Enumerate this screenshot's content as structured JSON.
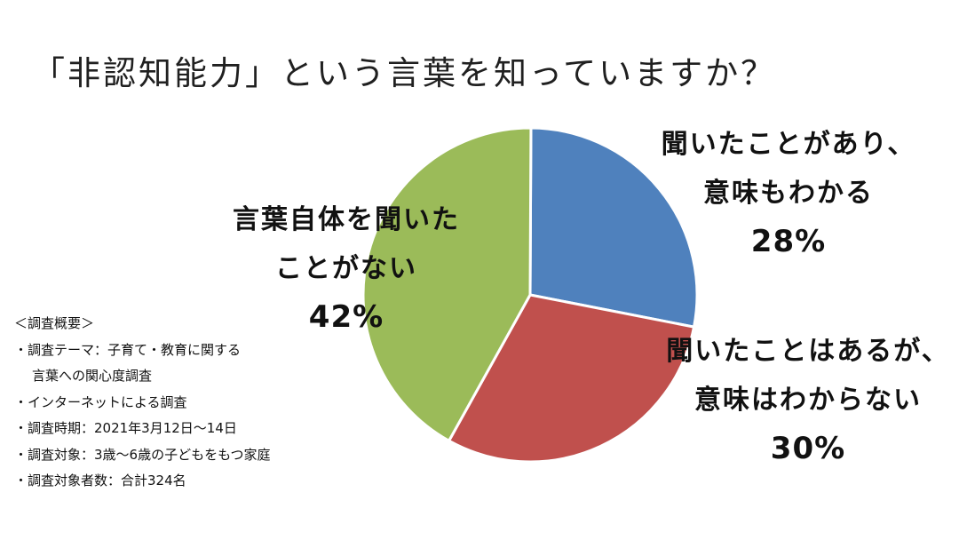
{
  "title": "「非認知能力」という言葉を知っていますか？",
  "chart_data": {
    "type": "pie",
    "title": "「非認知能力」という言葉を知っていますか？",
    "slices": [
      {
        "label_lines": [
          "聞いたことがあり、",
          "意味もわかる"
        ],
        "value": 28,
        "percent_label": "28%",
        "color": "#4f81bd"
      },
      {
        "label_lines": [
          "聞いたことはあるが、",
          "意味はわからない"
        ],
        "value": 30,
        "percent_label": "30%",
        "color": "#c0504d"
      },
      {
        "label_lines": [
          "言葉自体を聞いた",
          "ことがない"
        ],
        "value": 42,
        "percent_label": "42%",
        "color": "#9bbb59"
      }
    ]
  },
  "survey": {
    "heading": "＜調査概要＞",
    "items": [
      {
        "lines": [
          "・調査テーマ：子育て・教育に関する",
          "言葉への関心度調査"
        ]
      },
      {
        "lines": [
          "・インターネットによる調査"
        ]
      },
      {
        "lines": [
          "・調査時期：2021年3月12日～14日"
        ]
      },
      {
        "lines": [
          "・調査対象：3歳～6歳の子どもをもつ家庭"
        ]
      },
      {
        "lines": [
          "・調査対象者数：合計324名"
        ]
      }
    ]
  }
}
